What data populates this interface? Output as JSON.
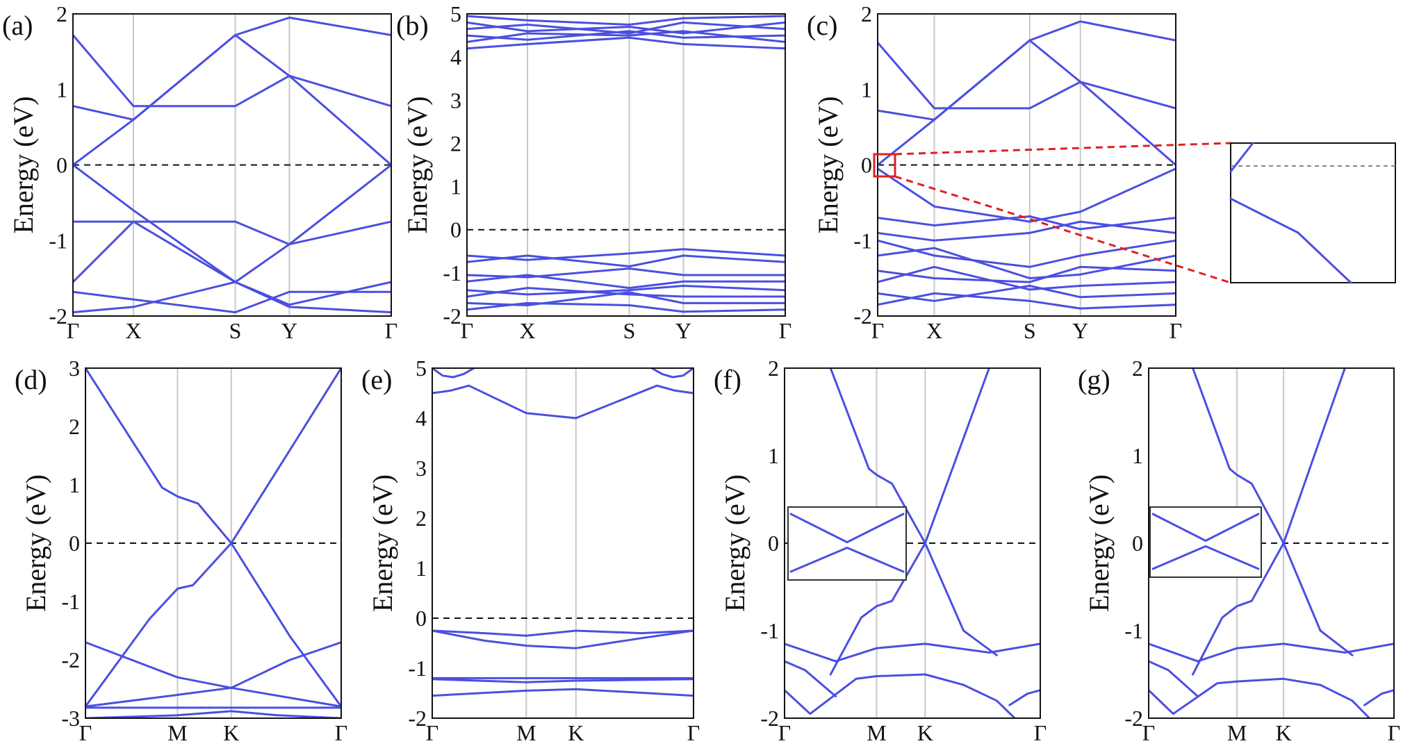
{
  "colors": {
    "band": "#4a4fe0",
    "frame": "#111111",
    "kline": "#c8c8c8",
    "fermi": "#111111",
    "zoom": "#e02020"
  },
  "ylabel": "Energy (eV)",
  "chart_data": [
    {
      "type": "line",
      "label": "(a)",
      "ylim": [
        -2,
        2
      ],
      "yticks": [
        "2",
        "1",
        "0",
        "-1",
        "-2"
      ],
      "kpoints": [
        {
          "label": "Γ",
          "x": 0
        },
        {
          "label": "X",
          "x": 0.19
        },
        {
          "label": "S",
          "x": 0.51
        },
        {
          "label": "Y",
          "x": 0.68
        },
        {
          "label": "Γ",
          "x": 1
        }
      ],
      "fermi": 0,
      "series": [
        {
          "x": [
            0,
            0.19,
            0.51,
            0.68,
            1
          ],
          "y": [
            1.72,
            0.78,
            0.78,
            1.18,
            0.78
          ]
        },
        {
          "x": [
            0,
            0.19,
            0.51,
            0.68,
            1
          ],
          "y": [
            0.78,
            0.6,
            1.72,
            1.95,
            1.72
          ]
        },
        {
          "x": [
            0,
            0.19,
            0.51,
            0.68,
            1
          ],
          "y": [
            0,
            0.6,
            1.72,
            1.18,
            0
          ]
        },
        {
          "x": [
            0,
            0.19,
            0.51,
            0.68,
            1
          ],
          "y": [
            0,
            -0.6,
            -1.55,
            -1.05,
            0
          ]
        },
        {
          "x": [
            0,
            0.19,
            0.51,
            0.68,
            1
          ],
          "y": [
            -0.75,
            -0.75,
            -0.75,
            -1.05,
            -0.75
          ]
        },
        {
          "x": [
            0,
            0.19,
            0.51,
            0.68,
            1
          ],
          "y": [
            -1.55,
            -0.75,
            -1.55,
            -1.85,
            -1.55
          ]
        },
        {
          "x": [
            0,
            0.19,
            0.51,
            0.68,
            1
          ],
          "y": [
            -1.68,
            -1.78,
            -1.95,
            -1.68,
            -1.68
          ]
        },
        {
          "x": [
            0,
            0.19,
            0.51,
            0.68,
            1
          ],
          "y": [
            -1.95,
            -1.88,
            -1.55,
            -1.88,
            -1.95
          ]
        }
      ]
    },
    {
      "type": "line",
      "label": "(b)",
      "ylim": [
        -2,
        5
      ],
      "yticks": [
        "5",
        "4",
        "3",
        "2",
        "1",
        "0",
        "-1",
        "-2"
      ],
      "kpoints": [
        {
          "label": "Γ",
          "x": 0
        },
        {
          "label": "X",
          "x": 0.19
        },
        {
          "label": "S",
          "x": 0.51
        },
        {
          "label": "Y",
          "x": 0.68
        },
        {
          "label": "Γ",
          "x": 1
        }
      ],
      "fermi": 0,
      "series": [
        {
          "x": [
            0,
            0.19,
            0.51,
            0.68,
            1
          ],
          "y": [
            4.2,
            4.3,
            4.45,
            4.3,
            4.2
          ]
        },
        {
          "x": [
            0,
            0.19,
            0.51,
            0.68,
            1
          ],
          "y": [
            4.35,
            4.55,
            4.5,
            4.6,
            4.35
          ]
        },
        {
          "x": [
            0,
            0.19,
            0.51,
            0.68,
            1
          ],
          "y": [
            4.5,
            4.4,
            4.6,
            4.45,
            4.5
          ]
        },
        {
          "x": [
            0,
            0.19,
            0.51,
            0.68,
            1
          ],
          "y": [
            4.65,
            4.75,
            4.55,
            4.8,
            4.65
          ]
        },
        {
          "x": [
            0,
            0.19,
            0.51,
            0.68,
            1
          ],
          "y": [
            4.8,
            4.6,
            4.7,
            4.55,
            4.8
          ]
        },
        {
          "x": [
            0,
            0.19,
            0.51,
            0.68,
            1
          ],
          "y": [
            4.95,
            4.85,
            4.75,
            4.9,
            4.95
          ]
        },
        {
          "x": [
            0,
            0.19,
            0.51,
            0.68,
            1
          ],
          "y": [
            -0.6,
            -0.7,
            -0.55,
            -0.45,
            -0.6
          ]
        },
        {
          "x": [
            0,
            0.19,
            0.51,
            0.68,
            1
          ],
          "y": [
            -0.75,
            -0.6,
            -0.85,
            -0.6,
            -0.75
          ]
        },
        {
          "x": [
            0,
            0.19,
            0.51,
            0.68,
            1
          ],
          "y": [
            -1.05,
            -1.1,
            -0.9,
            -1.05,
            -1.05
          ]
        },
        {
          "x": [
            0,
            0.19,
            0.51,
            0.68,
            1
          ],
          "y": [
            -1.2,
            -1.05,
            -1.35,
            -1.2,
            -1.2
          ]
        },
        {
          "x": [
            0,
            0.19,
            0.51,
            0.68,
            1
          ],
          "y": [
            -1.4,
            -1.5,
            -1.4,
            -1.3,
            -1.4
          ]
        },
        {
          "x": [
            0,
            0.19,
            0.51,
            0.68,
            1
          ],
          "y": [
            -1.55,
            -1.35,
            -1.5,
            -1.55,
            -1.55
          ]
        },
        {
          "x": [
            0,
            0.19,
            0.51,
            0.68,
            1
          ],
          "y": [
            -1.7,
            -1.75,
            -1.45,
            -1.7,
            -1.7
          ]
        },
        {
          "x": [
            0,
            0.19,
            0.51,
            0.68,
            1
          ],
          "y": [
            -1.85,
            -1.7,
            -1.75,
            -1.9,
            -1.85
          ]
        }
      ]
    },
    {
      "type": "line",
      "label": "(c)",
      "ylim": [
        -2,
        2
      ],
      "yticks": [
        "2",
        "1",
        "0",
        "-1",
        "-2"
      ],
      "kpoints": [
        {
          "label": "Γ",
          "x": 0
        },
        {
          "label": "X",
          "x": 0.19
        },
        {
          "label": "S",
          "x": 0.51
        },
        {
          "label": "Y",
          "x": 0.68
        },
        {
          "label": "Γ",
          "x": 1
        }
      ],
      "fermi": 0,
      "series": [
        {
          "x": [
            0,
            0.19,
            0.51,
            0.68,
            1
          ],
          "y": [
            1.62,
            0.75,
            0.75,
            1.1,
            0.75
          ]
        },
        {
          "x": [
            0,
            0.19,
            0.51,
            0.68,
            1
          ],
          "y": [
            0.72,
            0.6,
            1.65,
            1.9,
            1.65
          ]
        },
        {
          "x": [
            0,
            0.19,
            0.51,
            0.68,
            1
          ],
          "y": [
            0,
            0.6,
            1.65,
            1.1,
            0
          ]
        },
        {
          "x": [
            0,
            0.19,
            0.51,
            0.68,
            1
          ],
          "y": [
            -0.05,
            -0.55,
            -0.75,
            -0.62,
            -0.05
          ]
        },
        {
          "x": [
            0,
            0.19,
            0.51,
            0.68,
            1
          ],
          "y": [
            -0.7,
            -0.8,
            -0.68,
            -0.85,
            -0.7
          ]
        },
        {
          "x": [
            0,
            0.19,
            0.51,
            0.68,
            1
          ],
          "y": [
            -0.9,
            -1.0,
            -0.9,
            -0.75,
            -0.9
          ]
        },
        {
          "x": [
            0,
            0.19,
            0.51,
            0.68,
            1
          ],
          "y": [
            -1.0,
            -1.2,
            -1.35,
            -1.2,
            -1.0
          ]
        },
        {
          "x": [
            0,
            0.19,
            0.51,
            0.68,
            1
          ],
          "y": [
            -1.2,
            -1.1,
            -1.5,
            -1.45,
            -1.2
          ]
        },
        {
          "x": [
            0,
            0.19,
            0.51,
            0.68,
            1
          ],
          "y": [
            -1.4,
            -1.5,
            -1.55,
            -1.35,
            -1.4
          ]
        },
        {
          "x": [
            0,
            0.19,
            0.51,
            0.68,
            1
          ],
          "y": [
            -1.55,
            -1.35,
            -1.65,
            -1.6,
            -1.55
          ]
        },
        {
          "x": [
            0,
            0.19,
            0.51,
            0.68,
            1
          ],
          "y": [
            -1.7,
            -1.8,
            -1.6,
            -1.75,
            -1.7
          ]
        },
        {
          "x": [
            0,
            0.19,
            0.51,
            0.68,
            1
          ],
          "y": [
            -1.85,
            -1.7,
            -1.8,
            -1.9,
            -1.85
          ]
        }
      ]
    },
    {
      "type": "line",
      "label": "(d)",
      "ylim": [
        -3,
        3
      ],
      "yticks": [
        "3",
        "2",
        "1",
        "0",
        "-1",
        "-2",
        "-3"
      ],
      "kpoints": [
        {
          "label": "Γ",
          "x": 0
        },
        {
          "label": "M",
          "x": 0.36
        },
        {
          "label": "K",
          "x": 0.57
        },
        {
          "label": "Γ",
          "x": 1
        }
      ],
      "fermi": 0,
      "series": [
        {
          "x": [
            0,
            0.3,
            0.36,
            0.44,
            0.57,
            0.8,
            1
          ],
          "y": [
            3.0,
            0.95,
            0.8,
            0.68,
            0,
            1.6,
            3.0
          ]
        },
        {
          "x": [
            0,
            0.25,
            0.36,
            0.42,
            0.57,
            0.8,
            1
          ],
          "y": [
            -2.8,
            -1.3,
            -0.78,
            -0.72,
            0,
            -1.6,
            -2.8
          ]
        },
        {
          "x": [
            0,
            0.36,
            0.57,
            0.8,
            1
          ],
          "y": [
            -1.7,
            -2.3,
            -2.48,
            -2.0,
            -1.7
          ]
        },
        {
          "x": [
            0,
            0.36,
            0.57,
            1
          ],
          "y": [
            -2.8,
            -2.6,
            -2.48,
            -2.8
          ]
        },
        {
          "x": [
            0,
            0.57,
            1
          ],
          "y": [
            -2.82,
            -2.82,
            -2.82
          ]
        },
        {
          "x": [
            0,
            0.36,
            0.57,
            0.75,
            1
          ],
          "y": [
            -3.0,
            -2.95,
            -2.88,
            -2.95,
            -3.0
          ]
        }
      ]
    },
    {
      "type": "line",
      "label": "(e)",
      "ylim": [
        -2,
        5
      ],
      "yticks": [
        "5",
        "4",
        "3",
        "2",
        "1",
        "0",
        "-1",
        "-2"
      ],
      "kpoints": [
        {
          "label": "Γ",
          "x": 0
        },
        {
          "label": "M",
          "x": 0.36
        },
        {
          "label": "K",
          "x": 0.55
        },
        {
          "label": "Γ",
          "x": 1
        }
      ],
      "fermi": 0,
      "series": [
        {
          "x": [
            0,
            0.07,
            0.14,
            0.36,
            0.55,
            0.86,
            0.93,
            1
          ],
          "y": [
            4.5,
            4.55,
            4.65,
            4.1,
            4.0,
            4.65,
            4.55,
            4.5
          ]
        },
        {
          "x": [
            0,
            0.04,
            0.08,
            0.12,
            0.16
          ],
          "y": [
            5.0,
            4.85,
            4.82,
            4.88,
            5.0
          ]
        },
        {
          "x": [
            0.84,
            0.88,
            0.92,
            0.96,
            1.0
          ],
          "y": [
            5.0,
            4.88,
            4.82,
            4.85,
            5.0
          ]
        },
        {
          "x": [
            0,
            0.2,
            0.36,
            0.55,
            0.8,
            1
          ],
          "y": [
            -0.25,
            -0.3,
            -0.35,
            -0.25,
            -0.3,
            -0.25
          ]
        },
        {
          "x": [
            0,
            0.2,
            0.36,
            0.55,
            0.8,
            1
          ],
          "y": [
            -0.25,
            -0.45,
            -0.55,
            -0.6,
            -0.4,
            -0.25
          ]
        },
        {
          "x": [
            0,
            0.36,
            0.55,
            1
          ],
          "y": [
            -1.2,
            -1.2,
            -1.2,
            -1.2
          ]
        },
        {
          "x": [
            0,
            0.36,
            0.55,
            1
          ],
          "y": [
            -1.22,
            -1.28,
            -1.25,
            -1.22
          ]
        },
        {
          "x": [
            0,
            0.36,
            0.55,
            1
          ],
          "y": [
            -1.55,
            -1.45,
            -1.42,
            -1.55
          ]
        }
      ]
    },
    {
      "type": "line",
      "label": "(f)",
      "ylim": [
        -2,
        2
      ],
      "yticks": [
        "2",
        "1",
        "0",
        "-1",
        "-2"
      ],
      "kpoints": [
        {
          "label": "Γ",
          "x": 0
        },
        {
          "label": "M",
          "x": 0.36
        },
        {
          "label": "K",
          "x": 0.55
        },
        {
          "label": "Γ",
          "x": 1
        }
      ],
      "fermi": 0,
      "series": [
        {
          "x": [
            0.18,
            0.33,
            0.36,
            0.42,
            0.55,
            0.8
          ],
          "y": [
            2.0,
            0.85,
            0.78,
            0.68,
            0,
            2.0
          ]
        },
        {
          "x": [
            0.18,
            0.3,
            0.36,
            0.42,
            0.55,
            0.7,
            0.83
          ],
          "y": [
            -1.5,
            -0.85,
            -0.72,
            -0.66,
            0,
            -1.0,
            -1.28
          ]
        },
        {
          "x": [
            0,
            0.2,
            0.36,
            0.55,
            0.8,
            1
          ],
          "y": [
            -1.15,
            -1.35,
            -1.2,
            -1.15,
            -1.25,
            -1.15
          ]
        },
        {
          "x": [
            0,
            0.1,
            0.28,
            0.36,
            0.55,
            0.7,
            0.83,
            0.9
          ],
          "y": [
            -1.68,
            -1.95,
            -1.55,
            -1.52,
            -1.5,
            -1.62,
            -1.8,
            -2.0
          ]
        },
        {
          "x": [
            0,
            0.08,
            0.2
          ],
          "y": [
            -1.35,
            -1.45,
            -1.75
          ]
        },
        {
          "x": [
            0.88,
            0.95,
            1
          ],
          "y": [
            -1.85,
            -1.72,
            -1.68
          ]
        }
      ]
    },
    {
      "type": "line",
      "label": "(g)",
      "ylim": [
        -2,
        2
      ],
      "yticks": [
        "2",
        "1",
        "0",
        "-1",
        "-2"
      ],
      "kpoints": [
        {
          "label": "Γ",
          "x": 0
        },
        {
          "label": "M",
          "x": 0.36
        },
        {
          "label": "K",
          "x": 0.55
        },
        {
          "label": "Γ",
          "x": 1
        }
      ],
      "fermi": 0,
      "series": [
        {
          "x": [
            0.18,
            0.33,
            0.36,
            0.42,
            0.55,
            0.8
          ],
          "y": [
            2.0,
            0.85,
            0.78,
            0.68,
            0,
            2.0
          ]
        },
        {
          "x": [
            0.18,
            0.3,
            0.36,
            0.42,
            0.55,
            0.7,
            0.83
          ],
          "y": [
            -1.5,
            -0.85,
            -0.72,
            -0.66,
            0,
            -1.0,
            -1.28
          ]
        },
        {
          "x": [
            0,
            0.2,
            0.36,
            0.55,
            0.8,
            1
          ],
          "y": [
            -1.15,
            -1.35,
            -1.2,
            -1.15,
            -1.25,
            -1.15
          ]
        },
        {
          "x": [
            0,
            0.1,
            0.28,
            0.36,
            0.55,
            0.7,
            0.83,
            0.9
          ],
          "y": [
            -1.68,
            -1.95,
            -1.6,
            -1.58,
            -1.55,
            -1.62,
            -1.8,
            -2.0
          ]
        },
        {
          "x": [
            0,
            0.08,
            0.2
          ],
          "y": [
            -1.35,
            -1.45,
            -1.75
          ]
        },
        {
          "x": [
            0.88,
            0.95,
            1
          ],
          "y": [
            -1.85,
            -1.72,
            -1.68
          ]
        }
      ]
    }
  ]
}
